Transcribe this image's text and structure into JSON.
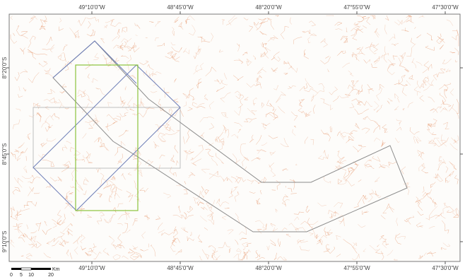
{
  "map": {
    "top_longitude_labels": [
      "49°10'0\"W",
      "48°45'0\"W",
      "48°20'0\"W",
      "47°55'0\"W",
      "47°30'0\"W"
    ],
    "bottom_longitude_labels": [
      "49°10'0\"W",
      "48°45'0\"W",
      "48°20'0\"W",
      "47°55'0\"W",
      "47°30'0\"W"
    ],
    "latitude_labels": [
      "8°20'0\"S",
      "8°45'0\"S",
      "9°10'0\"S"
    ],
    "colors": {
      "frame": "#7a7a7a",
      "drainage": "#e8a07a",
      "blue_footprint": "#6f7fb8",
      "green_footprint": "#8cc43c",
      "gray_footprint": "#8c8c8c",
      "light_box": "#c0c0c0"
    },
    "footprints": [
      {
        "name": "blue-diamond",
        "color_key": "blue_footprint"
      },
      {
        "name": "green-rectangle",
        "color_key": "green_footprint"
      },
      {
        "name": "gray-corridor",
        "color_key": "gray_footprint"
      },
      {
        "name": "light-box",
        "color_key": "light_box"
      }
    ]
  },
  "scale_bar": {
    "ticks": [
      "0",
      "5",
      "10",
      "20"
    ],
    "unit": "Km"
  }
}
